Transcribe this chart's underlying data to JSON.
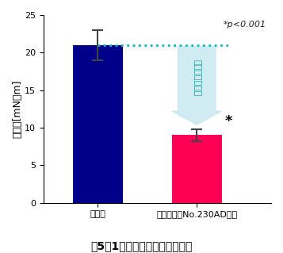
{
  "categories": [
    "無添加",
    "サンソフトNo.230AD添加"
  ],
  "values": [
    21.0,
    9.0
  ],
  "errors": [
    2.0,
    0.8
  ],
  "bar_colors": [
    "#00008B",
    "#FF0055"
  ],
  "ylim": [
    0,
    25
  ],
  "yticks": [
    0,
    5,
    10,
    15,
    20,
    25
  ],
  "ylabel": "トルク[mN・m]",
  "title": "図5　1周目トルク平均値の比較",
  "pvalue_text": "*p<0.001",
  "significance_star": "*",
  "dotted_line_y": 21.0,
  "arrow_text": "パラパラ感向上",
  "arrow_color": "#C8E8F0",
  "text_color": "#00AAAA",
  "pvalue_color": "#333333",
  "background_color": "#ffffff"
}
